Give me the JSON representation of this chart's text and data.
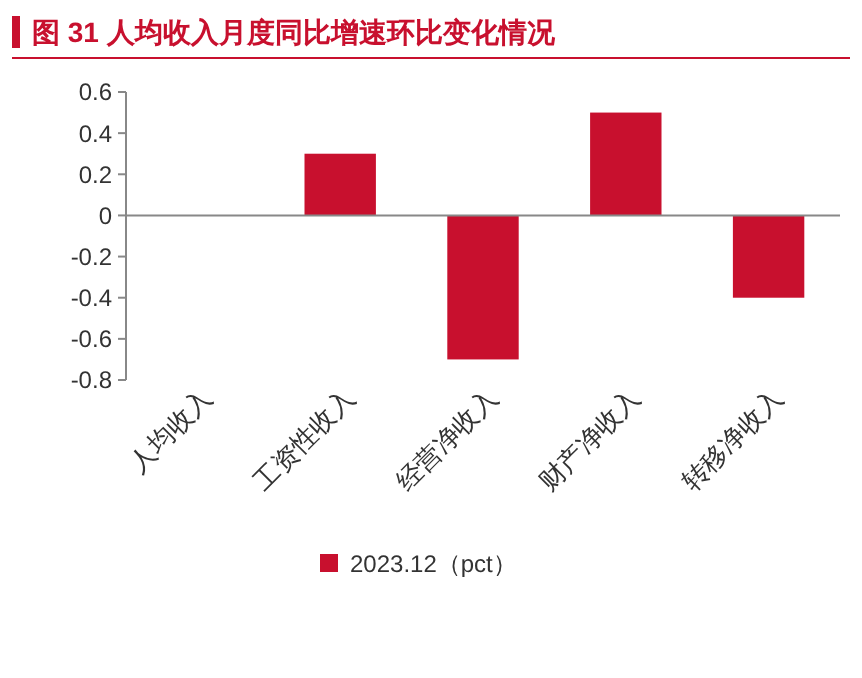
{
  "chart_data": {
    "type": "bar",
    "title": "图 31    人均收入月度同比增速环比变化情况",
    "categories": [
      "人均收入",
      "工资性收入",
      "经营净收入",
      "财产净收入",
      "转移净收入"
    ],
    "series": [
      {
        "name": "2023.12（pct）",
        "color": "#c8102e",
        "values": [
          0,
          0.3,
          -0.7,
          0.5,
          -0.4
        ]
      }
    ],
    "ylim": [
      -0.8,
      0.6
    ],
    "yticks": [
      -0.8,
      -0.6,
      -0.4,
      -0.2,
      0,
      0.2,
      0.4,
      0.6
    ],
    "legend": "bottom"
  }
}
